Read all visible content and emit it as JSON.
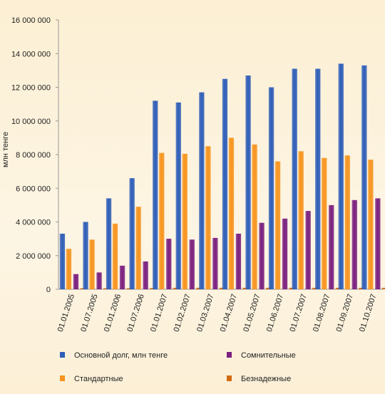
{
  "chart_data": {
    "type": "bar",
    "ylabel": "млн тенге",
    "xlabel": "",
    "ylim": [
      0,
      16000000
    ],
    "yticks": [
      0,
      2000000,
      4000000,
      6000000,
      8000000,
      10000000,
      12000000,
      14000000,
      16000000
    ],
    "ytick_labels": [
      "0",
      "2 000 000",
      "4 000 000",
      "6 000 000",
      "8 000 000",
      "10 000 000",
      "12 000 000",
      "14 000 000",
      "16 000 000"
    ],
    "categories": [
      "01.01.2005",
      "01.07.2005",
      "01.01.2006",
      "01.07.2006",
      "01.01.2007",
      "01.02.2007",
      "01.03.2007",
      "01.04.2007",
      "01.05.2007",
      "01.06.2007",
      "01.07.2007",
      "01.08.2007",
      "01.09.2007",
      "01.10.2007"
    ],
    "series": [
      {
        "name": "Основной долг, млн тенге",
        "color": "#2e5db8",
        "values": [
          3300000,
          4000000,
          5400000,
          6600000,
          11200000,
          11100000,
          11700000,
          12500000,
          12700000,
          12000000,
          13100000,
          13100000,
          13400000,
          13300000
        ]
      },
      {
        "name": "Стандартные",
        "color": "#f7941d",
        "values": [
          2400000,
          2950000,
          3900000,
          4900000,
          8100000,
          8050000,
          8500000,
          9000000,
          8600000,
          7600000,
          8200000,
          7800000,
          7950000,
          7700000
        ]
      },
      {
        "name": "Сомнительные",
        "color": "#7a1f7f",
        "values": [
          900000,
          1000000,
          1400000,
          1650000,
          3000000,
          2950000,
          3050000,
          3300000,
          3950000,
          4200000,
          4650000,
          5000000,
          5300000,
          5400000
        ]
      },
      {
        "name": "Безнадежные",
        "color": "#d46a12",
        "values": [
          50000,
          50000,
          60000,
          70000,
          90000,
          90000,
          90000,
          90000,
          90000,
          90000,
          90000,
          90000,
          90000,
          90000
        ]
      }
    ],
    "legend_position": "bottom",
    "grid": false
  }
}
